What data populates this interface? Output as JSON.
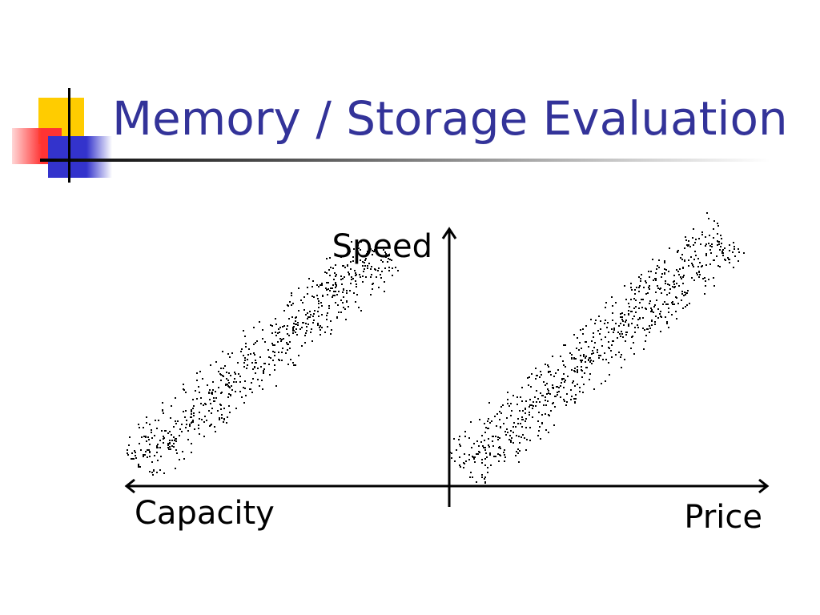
{
  "title": "Memory / Storage Evaluation",
  "diagram": {
    "y_axis_label": "Speed",
    "x_axis_left_label": "Capacity",
    "x_axis_right_label": "Price"
  }
}
